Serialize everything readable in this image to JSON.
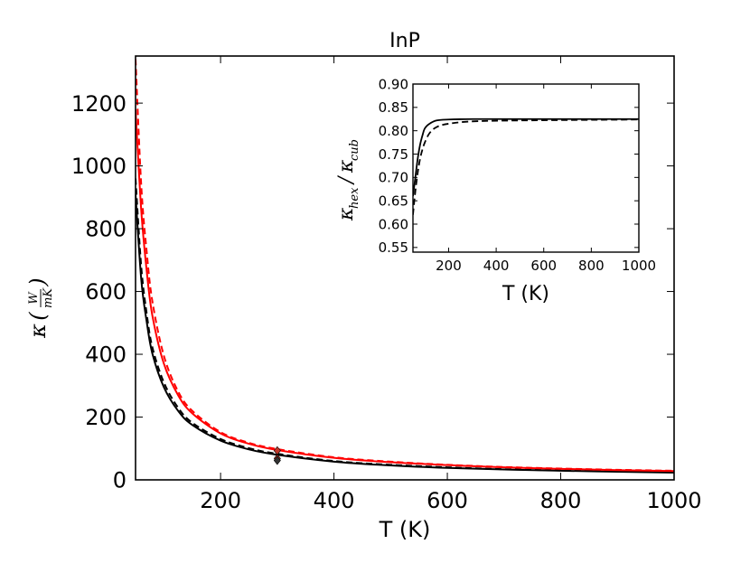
{
  "chart_data": [
    {
      "type": "line",
      "title": "InP",
      "xlabel": "T (K)",
      "ylabel": "κ(W/mK)",
      "ylabel_parts": {
        "symbol": "κ",
        "num": "W",
        "den": "mK"
      },
      "xlim": [
        50,
        1000
      ],
      "ylim": [
        0,
        1350
      ],
      "xticks": [
        200,
        400,
        600,
        800,
        1000
      ],
      "yticks": [
        0,
        200,
        400,
        600,
        800,
        1000,
        1200
      ],
      "grid": false,
      "series": [
        {
          "color": "#000000",
          "style": "solid",
          "x": [
            50,
            60,
            70,
            80,
            100,
            125,
            150,
            200,
            250,
            300,
            400,
            500,
            600,
            700,
            800,
            900,
            1000
          ],
          "y": [
            910,
            640,
            500,
            400,
            295,
            220,
            175,
            125,
            97,
            80,
            58,
            46,
            38,
            33,
            29,
            26,
            23
          ]
        },
        {
          "color": "#000000",
          "style": "dashed",
          "x": [
            50,
            60,
            70,
            80,
            100,
            125,
            150,
            200,
            250,
            300,
            400,
            500,
            600,
            700,
            800,
            900,
            1000
          ],
          "y": [
            960,
            680,
            525,
            420,
            310,
            230,
            182,
            130,
            101,
            83,
            60,
            48,
            40,
            34,
            30,
            27,
            24
          ]
        },
        {
          "color": "#ff0000",
          "style": "solid",
          "x": [
            50,
            60,
            70,
            80,
            100,
            125,
            150,
            200,
            250,
            300,
            400,
            500,
            600,
            700,
            800,
            900,
            1000
          ],
          "y": [
            1180,
            860,
            660,
            520,
            370,
            270,
            212,
            148,
            115,
            95,
            70,
            56,
            47,
            40,
            35,
            31,
            28
          ]
        },
        {
          "color": "#ff0000",
          "style": "dashed",
          "x": [
            50,
            60,
            70,
            80,
            100,
            125,
            150,
            200,
            250,
            300,
            400,
            500,
            600,
            700,
            800,
            900,
            1000
          ],
          "y": [
            1340,
            940,
            720,
            565,
            395,
            282,
            220,
            152,
            118,
            98,
            72,
            58,
            48,
            41,
            36,
            32,
            29
          ]
        }
      ],
      "markers": [
        {
          "x": 300,
          "y": 93,
          "color": "#c0392b",
          "shape": "diamond"
        },
        {
          "x": 300,
          "y": 68,
          "color": "#c0392b",
          "shape": "diamond"
        },
        {
          "x": 300,
          "y": 62,
          "color": "#333333",
          "shape": "diamond"
        }
      ]
    },
    {
      "type": "line",
      "title": "",
      "xlabel": "T (K)",
      "ylabel": "κhex/κcub",
      "ylabel_parts": {
        "symbol": "κ",
        "sub1": "hex",
        "sub2": "cub"
      },
      "xlim": [
        50,
        1000
      ],
      "ylim": [
        0.54,
        0.9
      ],
      "xticks": [
        200,
        400,
        600,
        800,
        1000
      ],
      "yticks": [
        0.55,
        0.6,
        0.65,
        0.7,
        0.75,
        0.8,
        0.85,
        0.9
      ],
      "ytick_labels": [
        "0.55",
        "0.60",
        "0.65",
        "0.70",
        "0.75",
        "0.80",
        "0.85",
        "0.90"
      ],
      "grid": false,
      "series": [
        {
          "color": "#000000",
          "style": "solid",
          "x": [
            50,
            60,
            70,
            80,
            90,
            100,
            120,
            150,
            200,
            300,
            500,
            1000
          ],
          "y": [
            0.66,
            0.7,
            0.74,
            0.77,
            0.79,
            0.805,
            0.815,
            0.822,
            0.824,
            0.825,
            0.825,
            0.825
          ]
        },
        {
          "color": "#000000",
          "style": "dashed",
          "x": [
            50,
            60,
            70,
            80,
            90,
            100,
            120,
            150,
            200,
            300,
            500,
            1000
          ],
          "y": [
            0.62,
            0.67,
            0.71,
            0.74,
            0.76,
            0.775,
            0.795,
            0.808,
            0.815,
            0.82,
            0.822,
            0.824
          ]
        }
      ]
    }
  ]
}
